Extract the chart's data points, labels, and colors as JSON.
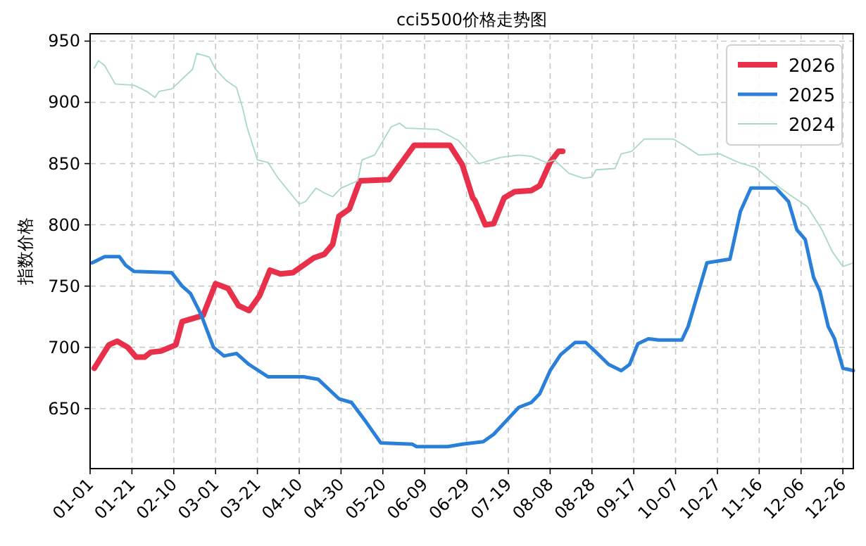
{
  "chart_data": {
    "type": "line",
    "title": "cci5500价格走势图",
    "ylabel": "指数价格",
    "xlim": [
      "--01-01",
      "--12-31"
    ],
    "ylim": [
      601,
      956
    ],
    "yticks": [
      650,
      700,
      750,
      800,
      850,
      900,
      950
    ],
    "xticks": [
      {
        "value": "--01-01",
        "label": "01-01"
      },
      {
        "value": "--01-21",
        "label": "01-21"
      },
      {
        "value": "--02-10",
        "label": "02-10"
      },
      {
        "value": "--03-01",
        "label": "03-01"
      },
      {
        "value": "--03-21",
        "label": "03-21"
      },
      {
        "value": "--04-10",
        "label": "04-10"
      },
      {
        "value": "--04-30",
        "label": "04-30"
      },
      {
        "value": "--05-20",
        "label": "05-20"
      },
      {
        "value": "--06-09",
        "label": "06-09"
      },
      {
        "value": "--06-29",
        "label": "06-29"
      },
      {
        "value": "--07-19",
        "label": "07-19"
      },
      {
        "value": "--08-08",
        "label": "08-08"
      },
      {
        "value": "--08-28",
        "label": "08-28"
      },
      {
        "value": "--09-17",
        "label": "09-17"
      },
      {
        "value": "--10-07",
        "label": "10-07"
      },
      {
        "value": "--10-27",
        "label": "10-27"
      },
      {
        "value": "--11-16",
        "label": "11-16"
      },
      {
        "value": "--12-06",
        "label": "12-06"
      },
      {
        "value": "--12-26",
        "label": "12-26"
      }
    ],
    "grid": true,
    "legend": "top right",
    "marker": "none",
    "line_style": "solid",
    "series": [
      {
        "name": "2026",
        "color": "#e8304a",
        "x": [
          "--01-03",
          "--01-10",
          "--01-14",
          "--01-19",
          "--01-23",
          "--01-27",
          "--01-30",
          "--02-04",
          "--02-11",
          "--02-14",
          "--02-24",
          "--03-01",
          "--03-07",
          "--03-12",
          "--03-17",
          "--03-22",
          "--03-27",
          "--04-01",
          "--04-07",
          "--04-12",
          "--04-17",
          "--04-22",
          "--04-26",
          "--04-29",
          "--05-04",
          "--05-09",
          "--05-23",
          "--05-29",
          "--06-04",
          "--06-21",
          "--06-27",
          "--07-02",
          "--07-03",
          "--07-08",
          "--07-12",
          "--07-17",
          "--07-22",
          "--07-30",
          "--08-03",
          "--08-08",
          "--08-12",
          "--08-14"
        ],
        "values": [
          683,
          702,
          705,
          700,
          692,
          692,
          696,
          697,
          702,
          721,
          726,
          752,
          748,
          734,
          730,
          742,
          763,
          760,
          761,
          767,
          773,
          776,
          784,
          807,
          813,
          836,
          837,
          851,
          865,
          865,
          849,
          822,
          820,
          800,
          801,
          822,
          827,
          828,
          832,
          851,
          860,
          860
        ]
      },
      {
        "name": "2025",
        "color": "#2a7fd9",
        "x": [
          "--01-02",
          "--01-08",
          "--01-15",
          "--01-18",
          "--01-22",
          "--02-09",
          "--02-14",
          "--02-18",
          "--02-23",
          "--02-29",
          "--03-05",
          "--03-11",
          "--03-17",
          "--03-26",
          "--04-12",
          "--04-19",
          "--04-29",
          "--05-05",
          "--05-12",
          "--05-19",
          "--06-03",
          "--06-05",
          "--06-20",
          "--06-27",
          "--07-07",
          "--07-12",
          "--07-18",
          "--07-24",
          "--07-30",
          "--08-03",
          "--08-08",
          "--08-13",
          "--08-20",
          "--08-25",
          "--08-30",
          "--09-05",
          "--09-11",
          "--09-15",
          "--09-19",
          "--09-24",
          "--09-29",
          "--10-10",
          "--10-13",
          "--10-17",
          "--10-22",
          "--11-02",
          "--11-07",
          "--11-12",
          "--11-24",
          "--11-30",
          "--12-04",
          "--12-08",
          "--12-12",
          "--12-15",
          "--12-19",
          "--12-22",
          "--12-26",
          "--12-31"
        ],
        "values": [
          769,
          774,
          774,
          767,
          762,
          761,
          750,
          744,
          727,
          700,
          693,
          695,
          686,
          676,
          676,
          674,
          658,
          655,
          639,
          622,
          621,
          619,
          619,
          621,
          623,
          629,
          640,
          651,
          655,
          662,
          681,
          694,
          704,
          704,
          696,
          686,
          681,
          686,
          703,
          707,
          706,
          706,
          717,
          740,
          769,
          772,
          811,
          830,
          830,
          819,
          796,
          788,
          757,
          746,
          717,
          707,
          683,
          681
        ]
      },
      {
        "name": "2024",
        "color": "#a8d8c8",
        "x": [
          "--01-03",
          "--01-05",
          "--01-08",
          "--01-13",
          "--01-22",
          "--01-28",
          "--02-01",
          "--02-03",
          "--02-09",
          "--02-19",
          "--02-21",
          "--02-27",
          "--03-01",
          "--03-06",
          "--03-11",
          "--03-14",
          "--03-16",
          "--03-21",
          "--03-26",
          "--03-31",
          "--04-10",
          "--04-13",
          "--04-18",
          "--04-22",
          "--04-26",
          "--04-30",
          "--05-08",
          "--05-10",
          "--05-16",
          "--05-24",
          "--05-28",
          "--05-31",
          "--06-15",
          "--06-25",
          "--07-05",
          "--07-15",
          "--07-24",
          "--07-30",
          "--08-06",
          "--08-10",
          "--08-17",
          "--08-24",
          "--08-28",
          "--08-30",
          "--09-08",
          "--09-11",
          "--09-16",
          "--09-22",
          "--10-06",
          "--10-11",
          "--10-18",
          "--10-28",
          "--11-06",
          "--11-14",
          "--11-23",
          "--12-01",
          "--12-09",
          "--12-16",
          "--12-21",
          "--12-26",
          "--12-31"
        ],
        "values": [
          928,
          934,
          930,
          915,
          914,
          909,
          904,
          909,
          911,
          927,
          940,
          937,
          927,
          918,
          912,
          895,
          880,
          853,
          851,
          838,
          817,
          819,
          830,
          826,
          823,
          830,
          836,
          853,
          857,
          880,
          883,
          879,
          878,
          869,
          850,
          855,
          857,
          856,
          851,
          853,
          842,
          838,
          839,
          845,
          846,
          858,
          860,
          870,
          870,
          865,
          857,
          858,
          851,
          847,
          834,
          824,
          815,
          796,
          778,
          766,
          769
        ]
      }
    ]
  }
}
